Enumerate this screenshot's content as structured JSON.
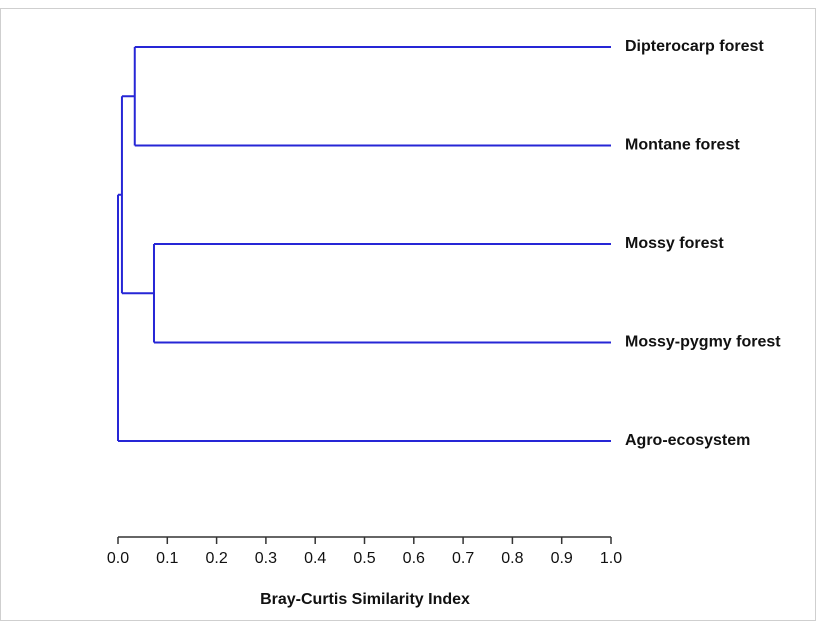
{
  "chart_data": {
    "type": "dendrogram",
    "color": "#2626d6",
    "xlabel": "Bray-Curtis Similarity Index",
    "xlim": [
      0,
      1
    ],
    "xticks": [
      {
        "value": 0,
        "label": "0.0"
      },
      0.1,
      0.2,
      0.3,
      0.4,
      0.5,
      0.6,
      0.7,
      0.8,
      0.9,
      {
        "value": 1,
        "label": "1.0"
      }
    ],
    "tree": {
      "height": 0.0,
      "children": [
        {
          "height": 0.008,
          "children": [
            {
              "height": 0.034,
              "children": [
                {
                  "label": "Dipterocarp forest"
                },
                {
                  "label": "Montane forest"
                }
              ]
            },
            {
              "height": 0.073,
              "children": [
                {
                  "label": "Mossy forest"
                },
                {
                  "label": "Mossy-pygmy forest"
                }
              ]
            }
          ]
        },
        {
          "label": "Agro-ecosystem"
        }
      ]
    }
  }
}
